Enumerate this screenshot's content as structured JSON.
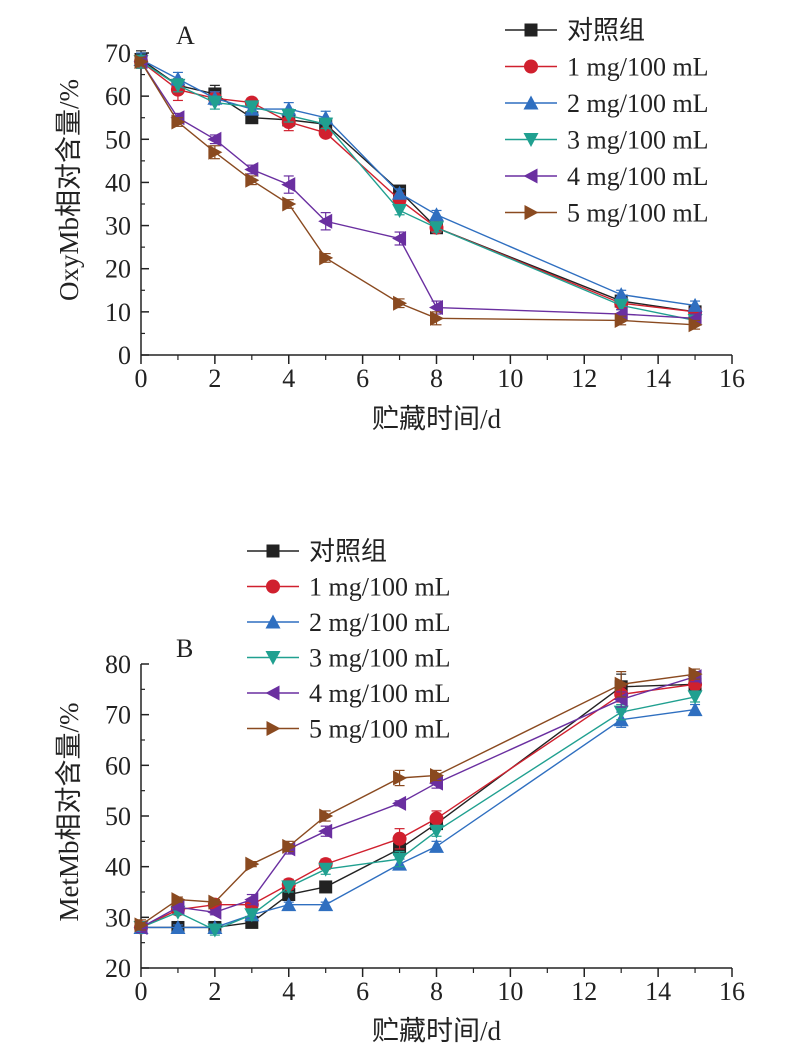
{
  "chart_data": [
    {
      "type": "line",
      "panel_label": "A",
      "title": "",
      "xlabel": "贮藏时间/d",
      "ylabel": "OxyMb相对含量/%",
      "xlim": [
        0,
        16
      ],
      "ylim": [
        0,
        70
      ],
      "xticks": [
        0,
        2,
        4,
        6,
        8,
        10,
        12,
        14,
        16
      ],
      "yticks": [
        0,
        10,
        20,
        30,
        40,
        50,
        60,
        70
      ],
      "grid": false,
      "legend_position": "top-right",
      "x": [
        0,
        1,
        2,
        3,
        4,
        5,
        7,
        8,
        13,
        15
      ],
      "series": [
        {
          "name": "对照组",
          "color": "#222222",
          "marker": "square",
          "values": [
            68.5,
            62.5,
            60.5,
            55.0,
            54.5,
            53.5,
            38.0,
            29.5,
            12.5,
            10.0
          ],
          "errors": [
            2.0,
            1.5,
            2.0,
            1.0,
            1.5,
            1.0,
            1.0,
            1.0,
            1.0,
            1.0
          ]
        },
        {
          "name": "1 mg/100 mL",
          "color": "#d0202e",
          "marker": "circle",
          "values": [
            68.0,
            61.5,
            59.5,
            58.5,
            54.0,
            51.5,
            36.0,
            29.5,
            12.0,
            10.0
          ],
          "errors": [
            1.5,
            2.5,
            1.5,
            1.0,
            2.0,
            1.0,
            1.5,
            1.0,
            1.0,
            1.0
          ]
        },
        {
          "name": "2 mg/100 mL",
          "color": "#2f6fc0",
          "marker": "triangle-up",
          "values": [
            68.5,
            64.0,
            59.5,
            57.0,
            57.0,
            55.0,
            37.5,
            32.5,
            14.0,
            11.5
          ],
          "errors": [
            1.5,
            1.5,
            1.5,
            1.0,
            1.5,
            1.5,
            1.0,
            1.0,
            1.0,
            1.0
          ]
        },
        {
          "name": "3 mg/100 mL",
          "color": "#20a090",
          "marker": "triangle-down",
          "values": [
            68.0,
            62.5,
            58.5,
            57.5,
            55.5,
            53.5,
            33.5,
            29.5,
            11.5,
            8.0
          ],
          "errors": [
            1.5,
            1.5,
            1.5,
            1.0,
            1.5,
            1.0,
            1.0,
            1.0,
            1.0,
            1.0
          ]
        },
        {
          "name": "4 mg/100 mL",
          "color": "#6a2fa0",
          "marker": "triangle-left",
          "values": [
            68.0,
            55.0,
            50.0,
            43.0,
            39.5,
            31.0,
            27.0,
            11.0,
            9.5,
            8.5
          ],
          "errors": [
            1.0,
            1.0,
            1.0,
            1.0,
            2.0,
            2.0,
            1.5,
            1.5,
            1.0,
            1.0
          ]
        },
        {
          "name": "5 mg/100 mL",
          "color": "#8a4a20",
          "marker": "triangle-right",
          "values": [
            68.0,
            54.0,
            47.0,
            40.5,
            35.0,
            22.5,
            12.0,
            8.5,
            8.0,
            7.0
          ],
          "errors": [
            1.0,
            1.0,
            1.5,
            1.0,
            1.0,
            1.0,
            1.0,
            1.5,
            1.0,
            1.0
          ]
        }
      ]
    },
    {
      "type": "line",
      "panel_label": "B",
      "title": "",
      "xlabel": "贮藏时间/d",
      "ylabel": "MetMb相对含量/%",
      "xlim": [
        0,
        16
      ],
      "ylim": [
        20,
        80
      ],
      "xticks": [
        0,
        2,
        4,
        6,
        8,
        10,
        12,
        14,
        16
      ],
      "yticks": [
        20,
        30,
        40,
        50,
        60,
        70,
        80
      ],
      "grid": false,
      "legend_position": "top-left",
      "x": [
        0,
        1,
        2,
        3,
        4,
        5,
        7,
        8,
        13,
        15
      ],
      "series": [
        {
          "name": "对照组",
          "color": "#222222",
          "marker": "square",
          "values": [
            28.0,
            28.0,
            28.0,
            29.0,
            34.5,
            36.0,
            43.5,
            48.5,
            75.5,
            76.0
          ],
          "errors": [
            1.0,
            0.5,
            0.5,
            0.5,
            1.0,
            0.5,
            1.0,
            1.0,
            2.5,
            1.0
          ]
        },
        {
          "name": "1 mg/100 mL",
          "color": "#d0202e",
          "marker": "circle",
          "values": [
            28.0,
            31.5,
            32.5,
            32.5,
            36.5,
            40.5,
            45.5,
            49.5,
            74.0,
            76.0
          ],
          "errors": [
            1.0,
            0.5,
            1.0,
            1.0,
            1.0,
            1.0,
            2.0,
            1.5,
            1.5,
            1.0
          ]
        },
        {
          "name": "2 mg/100 mL",
          "color": "#2f6fc0",
          "marker": "triangle-up",
          "values": [
            28.0,
            28.0,
            28.0,
            30.5,
            32.5,
            32.5,
            40.5,
            44.0,
            69.0,
            71.0
          ],
          "errors": [
            1.0,
            0.5,
            0.5,
            0.5,
            0.5,
            0.5,
            1.0,
            1.0,
            1.5,
            1.0
          ]
        },
        {
          "name": "3 mg/100 mL",
          "color": "#20a090",
          "marker": "triangle-down",
          "values": [
            28.0,
            31.0,
            27.5,
            30.5,
            36.0,
            39.5,
            41.5,
            47.0,
            70.5,
            73.5
          ],
          "errors": [
            1.0,
            0.5,
            1.0,
            1.0,
            1.0,
            1.0,
            1.5,
            1.0,
            1.5,
            1.0
          ]
        },
        {
          "name": "4 mg/100 mL",
          "color": "#6a2fa0",
          "marker": "triangle-left",
          "values": [
            28.0,
            32.0,
            31.0,
            33.5,
            43.5,
            47.0,
            52.5,
            56.5,
            73.0,
            77.5
          ],
          "errors": [
            1.0,
            0.5,
            0.5,
            1.0,
            1.0,
            1.0,
            0.5,
            1.0,
            1.5,
            1.0
          ]
        },
        {
          "name": "5 mg/100 mL",
          "color": "#8a4a20",
          "marker": "triangle-right",
          "values": [
            28.5,
            33.5,
            33.0,
            40.5,
            44.0,
            50.0,
            57.5,
            58.0,
            76.0,
            78.0
          ],
          "errors": [
            1.0,
            0.5,
            0.5,
            0.5,
            1.0,
            1.0,
            1.5,
            1.0,
            2.5,
            1.0
          ]
        }
      ]
    }
  ]
}
